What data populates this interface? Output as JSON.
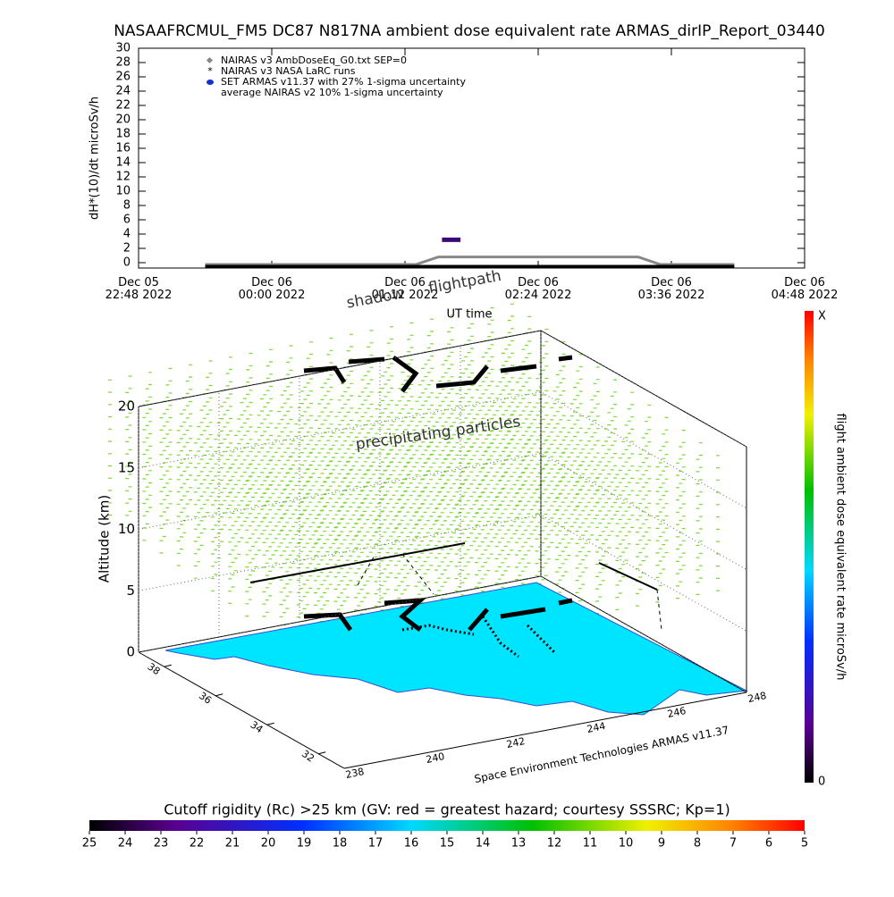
{
  "chart_data": [
    {
      "type": "line",
      "title": "NASAAFRCMUL_FM5 DC87 N817NA ambient dose equivalent rate ARMAS_dirIP_Report_03440",
      "y_label": "dH*(10)/dt microSv/h",
      "x_label": "UT time",
      "xlim": [
        "2022-12-05 22:48",
        "2022-12-06 04:48"
      ],
      "xticks": [
        {
          "value": "2022-12-05 22:48",
          "label": "Dec 05\n22:48 2022"
        },
        {
          "value": "2022-12-06 00:00",
          "label": "Dec 06\n00:00 2022"
        },
        {
          "value": "2022-12-06 01:12",
          "label": "Dec 06\n01:12 2022"
        },
        {
          "value": "2022-12-06 02:24",
          "label": "Dec 06\n02:24 2022"
        },
        {
          "value": "2022-12-06 03:36",
          "label": "Dec 06\n03:36 2022"
        },
        {
          "value": "2022-12-06 04:48",
          "label": "Dec 06\n04:48 2022"
        }
      ],
      "ylim": [
        -0.75,
        30
      ],
      "yticks": [
        0,
        2,
        4,
        6,
        8,
        10,
        12,
        14,
        16,
        18,
        20,
        22,
        24,
        26,
        28,
        30
      ],
      "series": [
        {
          "name": "NAIRAS v3 AmbDoseEq_G0.txt SEP=0",
          "color": "#888888",
          "marker": "diamond",
          "x": [
            "2022-12-05 23:24",
            "2022-12-05 23:48",
            "2022-12-06 00:12",
            "2022-12-06 00:36",
            "2022-12-06 01:00",
            "2022-12-06 01:18",
            "2022-12-06 01:30",
            "2022-12-06 01:54",
            "2022-12-06 02:18",
            "2022-12-06 02:42",
            "2022-12-06 03:06",
            "2022-12-06 03:18",
            "2022-12-06 03:30",
            "2022-12-06 03:54",
            "2022-12-06 04:10"
          ],
          "values": [
            -0.25,
            -0.25,
            -0.25,
            -0.25,
            -0.25,
            -0.25,
            0.8,
            0.8,
            0.8,
            0.8,
            0.8,
            0.8,
            -0.25,
            -0.25,
            -0.25
          ]
        },
        {
          "name": "NAIRAS v3 NASA LaRC runs",
          "color": "#000000",
          "marker": "star",
          "x": [
            "2022-12-05 23:24",
            "2022-12-06 00:30",
            "2022-12-06 01:36",
            "2022-12-06 02:42",
            "2022-12-06 03:48",
            "2022-12-06 04:10"
          ],
          "values": [
            -0.5,
            -0.5,
            -0.5,
            -0.5,
            -0.5,
            -0.5
          ]
        },
        {
          "name": "SET ARMAS v11.37 with 27% 1-sigma uncertainty",
          "color": "#3a0a78",
          "marker": "circle",
          "x": [
            "2022-12-06 01:32",
            "2022-12-06 01:37",
            "2022-12-06 01:42"
          ],
          "values": [
            3.2,
            3.2,
            3.2
          ]
        }
      ],
      "legend_note": "average NAIRAS v2 10% 1-sigma uncertainty"
    },
    {
      "type": "surface3d",
      "z_label": "Altitude (km)",
      "xlim": [
        238,
        248
      ],
      "xticks": [
        238,
        240,
        242,
        244,
        246,
        248
      ],
      "ylim": [
        31,
        39
      ],
      "yticks": [
        32,
        34,
        36,
        38
      ],
      "zlim": [
        0,
        20
      ],
      "zticks": [
        0,
        5,
        10,
        15,
        20
      ],
      "annotations": [
        "flightpath",
        "shadow",
        "precipitating particles"
      ],
      "footer": "Space Environment Technologies ARMAS v11.37",
      "dose_scale": {
        "label": "flight ambient dose equivalent rate microSv/h",
        "top_label": "X",
        "bottom_tick": 0
      },
      "rigidity_scale": {
        "label": "Cutoff rigidity (Rc) >25 km (GV: red = greatest hazard; courtesy SSSRC; Kp=1)",
        "lim": [
          25,
          5
        ],
        "ticks": [
          25,
          24,
          23,
          22,
          21,
          20,
          19,
          18,
          17,
          16,
          15,
          14,
          13,
          12,
          11,
          10,
          9,
          8,
          7,
          6,
          5
        ]
      }
    }
  ]
}
